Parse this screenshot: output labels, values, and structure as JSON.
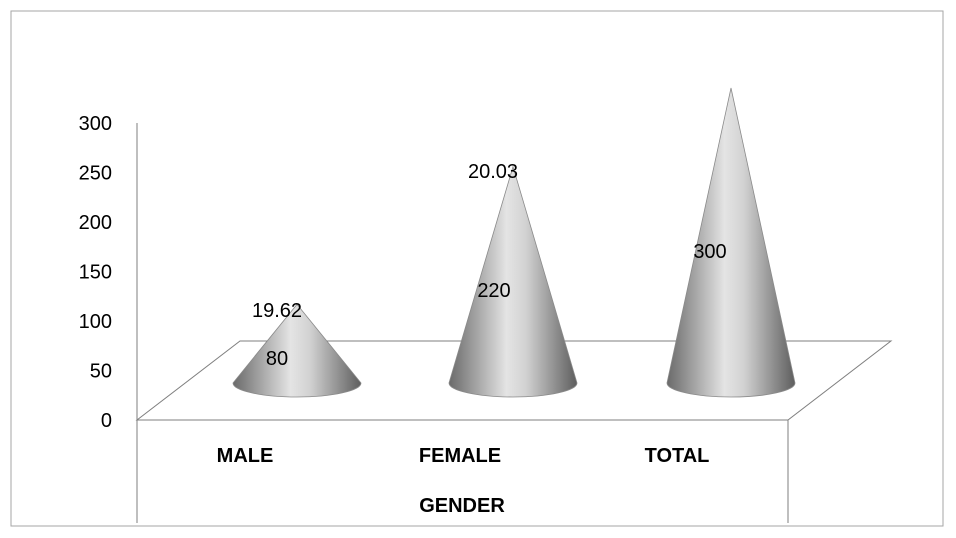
{
  "chart_data": {
    "type": "bar",
    "categories": [
      "MALE",
      "FEMALE",
      "TOTAL"
    ],
    "series": [
      {
        "values": [
          80,
          220,
          300
        ]
      },
      {
        "values": [
          19.62,
          20.03,
          null
        ]
      }
    ],
    "data_labels": [
      {
        "category": "MALE",
        "value_label": "80",
        "secondary_label": "19.62"
      },
      {
        "category": "FEMALE",
        "value_label": "220",
        "secondary_label": "20.03"
      },
      {
        "category": "TOTAL",
        "value_label": "300",
        "secondary_label": ""
      }
    ],
    "title": "",
    "xlabel": "GENDER",
    "ylabel": "",
    "ylim": [
      0,
      300
    ],
    "yticks": [
      "0",
      "50",
      "100",
      "150",
      "200",
      "250",
      "300"
    ],
    "grid": false,
    "legend": "none",
    "colors": {
      "cone_dark": "#6e6e6e",
      "cone_light": "#e6e6e6",
      "outline": "#7f7f7f"
    }
  }
}
